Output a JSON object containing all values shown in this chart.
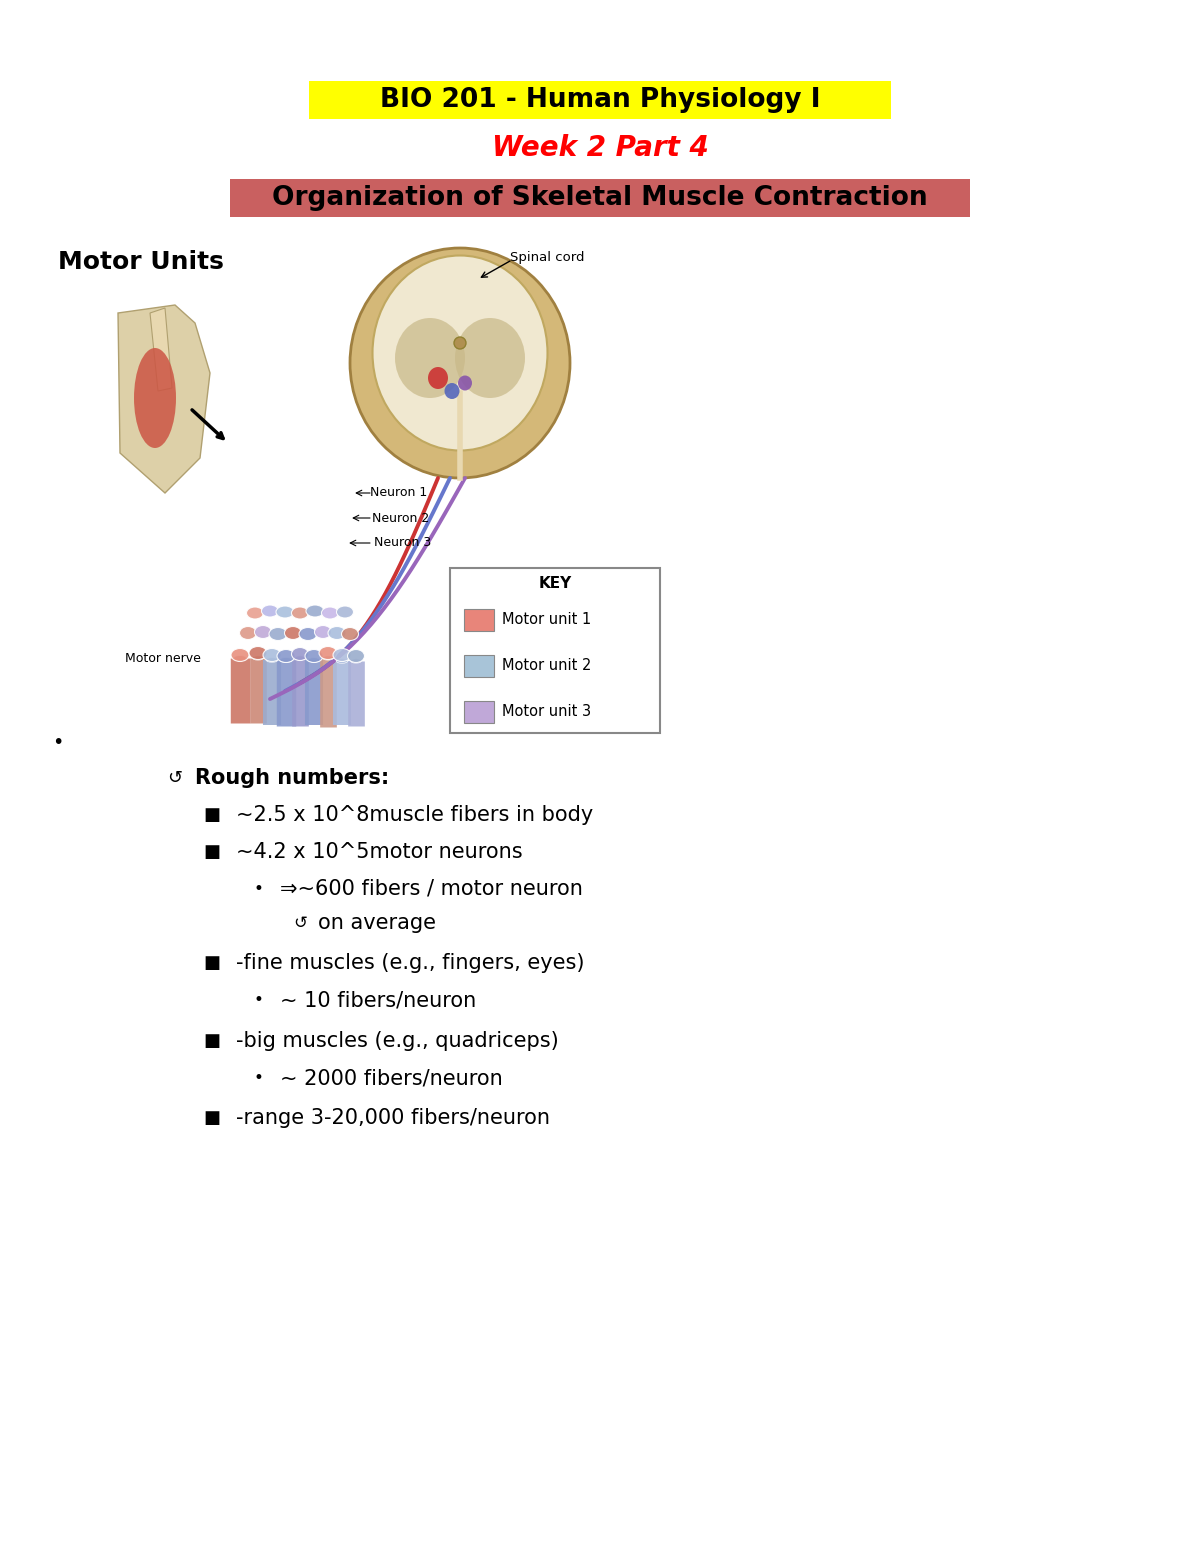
{
  "bg_color": "#ffffff",
  "title1": "BIO 201 - Human Physiology I",
  "title1_color": "#000000",
  "title1_bg": "#ffff00",
  "title2": "Week 2 Part 4",
  "title2_color": "#ff0000",
  "title3": "Organization of Skeletal Muscle Contraction",
  "title3_color": "#000000",
  "title3_bg": "#c96060",
  "section_header": "Motor Units",
  "figsize": [
    12.0,
    15.53
  ],
  "dpi": 100,
  "title1_fontsize": 19,
  "title2_fontsize": 20,
  "title3_fontsize": 19,
  "section_fontsize": 18,
  "body_fontsize": 15,
  "bullet_dot": "•",
  "rough_numbers_label": "Rough numbers:",
  "rough_numbers_marker": "↺",
  "bullets_l2_marker": "■",
  "bullets_l3_marker": "•",
  "bullets_l4_marker": "↺",
  "b1": "~2.5 x 10^8muscle fibers in body",
  "b2": "~4.2 x 10^5motor neurons",
  "b3": "⇒~600 fibers / motor neuron",
  "b4": "on average",
  "b5": "-fine muscles (e.g., fingers, eyes)",
  "b6": "~ 10 fibers/neuron",
  "b7": "-big muscles (e.g., quadriceps)",
  "b8": "~ 2000 fibers/neuron",
  "b9": "-range 3-20,000 fibers/neuron",
  "key_title": "KEY",
  "key_label1": "Motor unit 1",
  "key_label2": "Motor unit 2",
  "key_label3": "Motor unit 3",
  "key_color1": "#e8857a",
  "key_color2": "#a8c4d8",
  "key_color3": "#c0a8d8",
  "spinal_cord_label": "Spinal cord",
  "neuron1_label": "Neuron 1",
  "neuron2_label": "Neuron 2",
  "neuron3_label": "Neuron 3",
  "motor_nerve_label": "Motor nerve"
}
